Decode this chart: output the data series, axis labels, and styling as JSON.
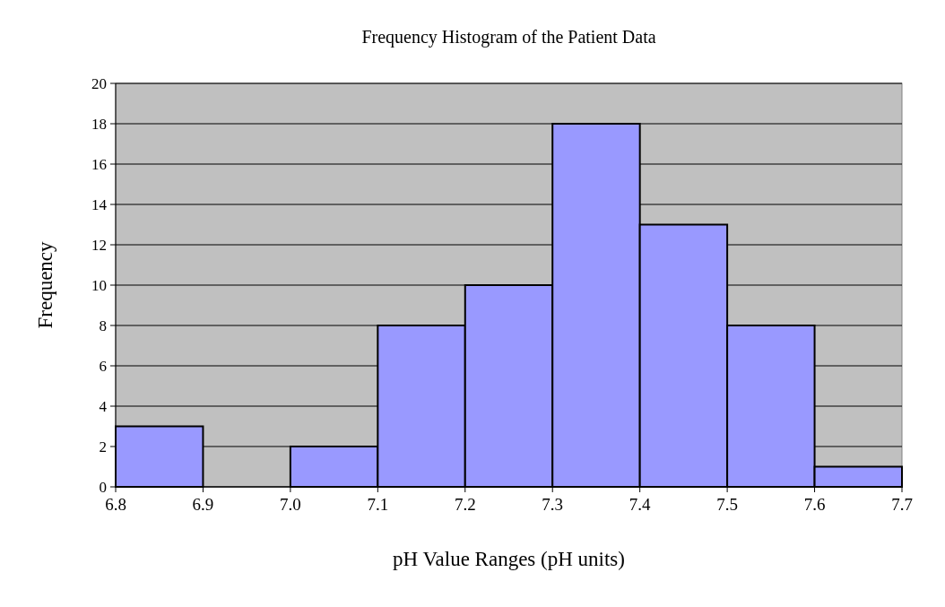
{
  "chart_data": {
    "type": "histogram",
    "title": "Frequency Histogram of the Patient Data",
    "xlabel": "pH Value Ranges (pH units)",
    "ylabel": "Frequency",
    "bins": [
      6.8,
      6.9,
      7.0,
      7.1,
      7.2,
      7.3,
      7.4,
      7.5,
      7.6,
      7.7
    ],
    "values": [
      3,
      0,
      2,
      8,
      10,
      18,
      13,
      8,
      1
    ],
    "color": "#9999ff",
    "xlim": [
      6.8,
      7.7
    ],
    "xticks": [
      6.8,
      6.9,
      {
        "value": 7.0,
        "label": "7.0"
      },
      7.1,
      7.2,
      7.3,
      7.4,
      7.5,
      7.6,
      7.7
    ],
    "ylim": [
      0,
      20
    ],
    "yticks": [
      0,
      2,
      4,
      6,
      8,
      10,
      12,
      14,
      16,
      18,
      20
    ],
    "grid": "y"
  }
}
